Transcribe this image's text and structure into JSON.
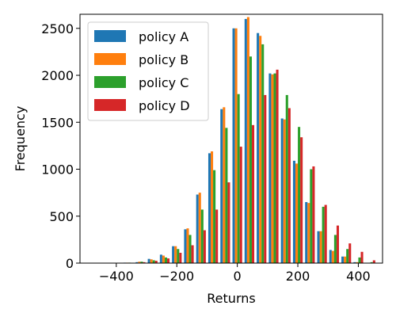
{
  "chart_data": {
    "type": "bar",
    "xlabel": "Returns",
    "ylabel": "Frequency",
    "xlim": [
      -520,
      480
    ],
    "ylim": [
      0,
      2650
    ],
    "grid": false,
    "legend_position": "top-left",
    "x_ticks": [
      -400,
      -200,
      0,
      200,
      400
    ],
    "x_tick_labels": [
      "−400",
      "−200",
      "0",
      "200",
      "400"
    ],
    "y_ticks": [
      0,
      500,
      1000,
      1500,
      2000,
      2500
    ],
    "y_tick_labels": [
      "0",
      "500",
      "1000",
      "1500",
      "2000",
      "2500"
    ],
    "bin_width": 40,
    "x": [
      -480,
      -440,
      -400,
      -360,
      -320,
      -280,
      -240,
      -200,
      -160,
      -120,
      -80,
      -40,
      0,
      40,
      80,
      120,
      160,
      200,
      240,
      280,
      320,
      360,
      400,
      440
    ],
    "series": [
      {
        "name": "policy A",
        "color": "#1f77b4",
        "values": [
          0,
          0,
          0,
          5,
          10,
          45,
          90,
          180,
          360,
          730,
          1170,
          1640,
          2500,
          2600,
          2450,
          2020,
          1540,
          1090,
          650,
          340,
          140,
          70,
          10,
          0
        ]
      },
      {
        "name": "policy B",
        "color": "#ff7f0e",
        "values": [
          0,
          0,
          0,
          5,
          15,
          40,
          80,
          180,
          370,
          750,
          1190,
          1660,
          2500,
          2620,
          2420,
          2010,
          1530,
          1060,
          640,
          340,
          130,
          70,
          10,
          0
        ]
      },
      {
        "name": "policy C",
        "color": "#2ca02c",
        "values": [
          0,
          0,
          0,
          5,
          15,
          30,
          60,
          150,
          300,
          570,
          990,
          1440,
          1800,
          2200,
          2330,
          2020,
          1790,
          1450,
          1000,
          600,
          300,
          150,
          60,
          10
        ]
      },
      {
        "name": "policy D",
        "color": "#d62728",
        "values": [
          0,
          0,
          0,
          0,
          10,
          25,
          50,
          110,
          190,
          350,
          570,
          860,
          1240,
          1470,
          1790,
          2060,
          1650,
          1340,
          1030,
          620,
          400,
          210,
          120,
          30
        ]
      }
    ]
  }
}
